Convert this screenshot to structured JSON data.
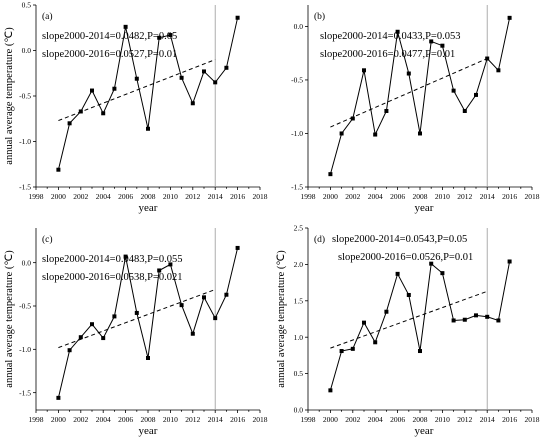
{
  "chart_data": [
    {
      "type": "line",
      "panel_label": "(a)",
      "annotations": [
        "slope2000-2014=0.0482,P=0.05",
        "slope2000-2016=0.0527,P=0.01"
      ],
      "xlabel": "year",
      "ylabel": "annual average temperature (℃)",
      "xlim": [
        1998,
        2018
      ],
      "ylim": [
        -1.5,
        0.5
      ],
      "x_ticks": [
        1998,
        2000,
        2002,
        2004,
        2006,
        2008,
        2010,
        2012,
        2014,
        2016,
        2018
      ],
      "y_ticks": [
        "-1.5",
        "-1.0",
        "-0.5",
        "0.0",
        "0.5"
      ],
      "vline_x": 2014,
      "trend": {
        "x": [
          2000,
          2014
        ],
        "y": [
          -0.77,
          -0.1
        ]
      },
      "x": [
        2000,
        2001,
        2002,
        2003,
        2004,
        2005,
        2006,
        2007,
        2008,
        2009,
        2010,
        2011,
        2012,
        2013,
        2014,
        2015,
        2016
      ],
      "values": [
        -1.31,
        -0.8,
        -0.67,
        -0.44,
        -0.69,
        -0.42,
        0.26,
        -0.31,
        -0.86,
        0.14,
        0.17,
        -0.3,
        -0.58,
        -0.23,
        -0.35,
        -0.19,
        0.36
      ]
    },
    {
      "type": "line",
      "panel_label": "(b)",
      "annotations": [
        "slope2000-2014=0.0433,P=0.053",
        "slope2000-2016=0.0477,P=0.01"
      ],
      "xlabel": "year",
      "ylabel": "",
      "xlim": [
        1998,
        2018
      ],
      "ylim": [
        -1.5,
        0.2
      ],
      "x_ticks": [
        1998,
        2000,
        2002,
        2004,
        2006,
        2008,
        2010,
        2012,
        2014,
        2016,
        2018
      ],
      "y_ticks": [
        "-1.5",
        "-1.0",
        "-0.5",
        "0.0"
      ],
      "vline_x": 2014,
      "trend": {
        "x": [
          2000,
          2014
        ],
        "y": [
          -0.94,
          -0.3
        ]
      },
      "x": [
        2000,
        2001,
        2002,
        2003,
        2004,
        2005,
        2006,
        2007,
        2008,
        2009,
        2010,
        2011,
        2012,
        2013,
        2014,
        2015,
        2016
      ],
      "values": [
        -1.38,
        -1.0,
        -0.86,
        -0.41,
        -1.01,
        -0.79,
        -0.05,
        -0.44,
        -1.0,
        -0.14,
        -0.18,
        -0.6,
        -0.79,
        -0.64,
        -0.3,
        -0.41,
        0.08
      ]
    },
    {
      "type": "line",
      "panel_label": "(c)",
      "annotations": [
        "slope2000-2014=0.0483,P=0.055",
        "slope2000-2016=0.0538,P=0.021"
      ],
      "xlabel": "year",
      "ylabel": "annual average temperature (℃)",
      "xlim": [
        1998,
        2018
      ],
      "ylim": [
        -1.7,
        0.4
      ],
      "x_ticks": [
        1998,
        2000,
        2002,
        2004,
        2006,
        2008,
        2010,
        2012,
        2014,
        2016,
        2018
      ],
      "y_ticks": [
        "-1.5",
        "-1.0",
        "-0.5",
        "0.0"
      ],
      "vline_x": 2014,
      "trend": {
        "x": [
          2000,
          2014
        ],
        "y": [
          -0.98,
          -0.31
        ]
      },
      "x": [
        2000,
        2001,
        2002,
        2003,
        2004,
        2005,
        2006,
        2007,
        2008,
        2009,
        2010,
        2011,
        2012,
        2013,
        2014,
        2015,
        2016
      ],
      "values": [
        -1.56,
        -1.01,
        -0.86,
        -0.71,
        -0.87,
        -0.62,
        0.07,
        -0.58,
        -1.1,
        -0.09,
        -0.02,
        -0.49,
        -0.82,
        -0.4,
        -0.64,
        -0.37,
        0.17
      ]
    },
    {
      "type": "line",
      "panel_label": "(d)",
      "annotations": [
        "slope2000-2014=0.0543,P=0.05",
        "slope2000-2016=0.0526,P=0.01"
      ],
      "xlabel": "year",
      "ylabel": "annual average temperature (℃)",
      "xlim": [
        1998,
        2018
      ],
      "ylim": [
        0.0,
        2.5
      ],
      "x_ticks": [
        1998,
        2000,
        2002,
        2004,
        2006,
        2008,
        2010,
        2012,
        2014,
        2016,
        2018
      ],
      "y_ticks": [
        "0.0",
        "0.5",
        "1.0",
        "1.5",
        "2.0",
        "2.5"
      ],
      "vline_x": 2014,
      "trend": {
        "x": [
          2000,
          2014
        ],
        "y": [
          0.85,
          1.63
        ]
      },
      "x": [
        2000,
        2001,
        2002,
        2003,
        2004,
        2005,
        2006,
        2007,
        2008,
        2009,
        2010,
        2011,
        2012,
        2013,
        2014,
        2015,
        2016
      ],
      "values": [
        0.27,
        0.81,
        0.84,
        1.2,
        0.93,
        1.35,
        1.87,
        1.58,
        0.81,
        2.01,
        1.88,
        1.23,
        1.24,
        1.3,
        1.28,
        1.23,
        2.04
      ]
    }
  ]
}
